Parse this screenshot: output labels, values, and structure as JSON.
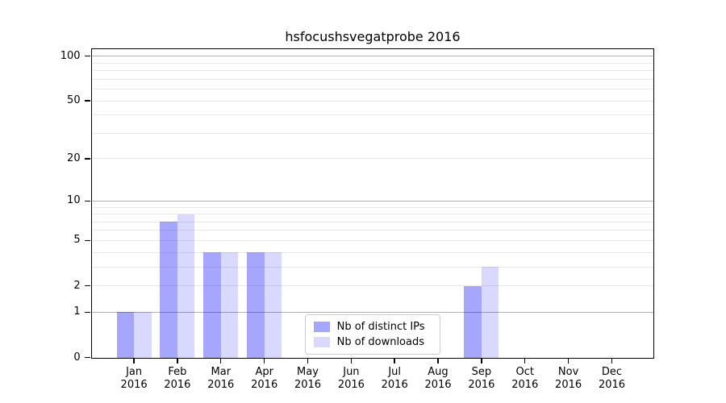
{
  "figure": {
    "background": "#ffffff",
    "text_color": "#000000",
    "spine_color": "#000000"
  },
  "chart_data": {
    "type": "bar",
    "title": "hsfocushsvegatprobe 2016",
    "xlabel": "",
    "ylabel": "",
    "categories": [
      "Jan 2016",
      "Feb 2016",
      "Mar 2016",
      "Apr 2016",
      "May 2016",
      "Jun 2016",
      "Jul 2016",
      "Aug 2016",
      "Sep 2016",
      "Oct 2016",
      "Nov 2016",
      "Dec 2016"
    ],
    "series": [
      {
        "name": "Nb of distinct IPs",
        "color": "rgba(0,0,255,0.35)",
        "color_hex": "#a6a6ff",
        "values": [
          1,
          7,
          4,
          4,
          0,
          0,
          0,
          0,
          2,
          0,
          0,
          0
        ]
      },
      {
        "name": "Nb of downloads",
        "color": "rgba(0,0,255,0.15)",
        "color_hex": "#d9d9ff",
        "values": [
          1,
          8,
          4,
          4,
          0,
          0,
          0,
          0,
          3,
          0,
          0,
          0
        ]
      }
    ],
    "y_axis": {
      "scale": "log1p",
      "min": 0,
      "max": 112,
      "tick_labels": [
        100,
        50,
        20,
        10,
        5,
        2,
        1,
        0
      ],
      "major_gridlines": [
        1,
        10,
        100
      ],
      "minor_gridlines": [
        2,
        3,
        4,
        5,
        6,
        7,
        8,
        9,
        20,
        30,
        40,
        50,
        60,
        70,
        80,
        90
      ]
    },
    "grid": {
      "on": true,
      "major_color": "#b0b0b0",
      "minor_color": "#e8e8e8"
    },
    "legend": {
      "position": "lower center-left",
      "entries": [
        "Nb of distinct IPs",
        "Nb of downloads"
      ]
    }
  }
}
